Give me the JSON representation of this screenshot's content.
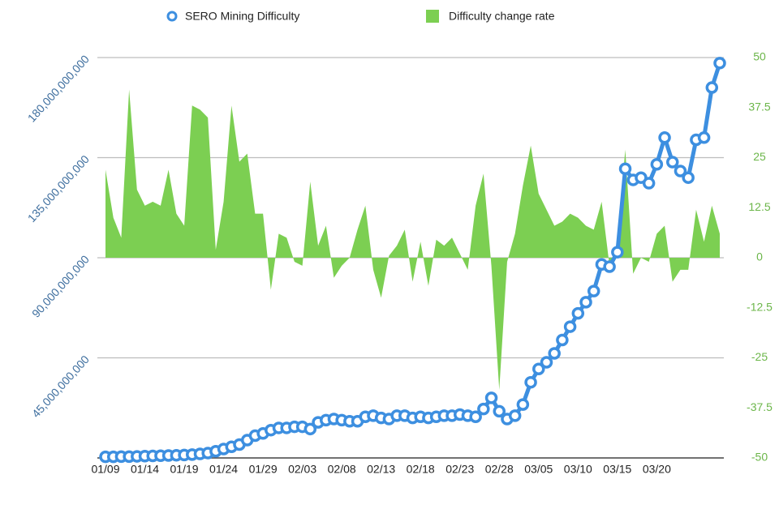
{
  "chart_data": {
    "type": "line+area",
    "categories": [
      "01/09",
      null,
      null,
      null,
      null,
      "01/14",
      null,
      null,
      null,
      null,
      "01/19",
      null,
      null,
      null,
      null,
      "01/24",
      null,
      null,
      null,
      null,
      "01/29",
      null,
      null,
      null,
      null,
      "02/03",
      null,
      null,
      null,
      null,
      "02/08",
      null,
      null,
      null,
      null,
      "02/13",
      null,
      null,
      null,
      null,
      "02/18",
      null,
      null,
      null,
      null,
      "02/23",
      null,
      null,
      null,
      null,
      "02/28",
      null,
      null,
      null,
      null,
      "03/05",
      null,
      null,
      null,
      null,
      "03/10",
      null,
      null,
      null,
      null,
      "03/15",
      null,
      null,
      null,
      null,
      "03/20",
      null,
      null,
      null,
      null,
      null,
      null,
      null,
      null
    ],
    "series": [
      {
        "name": "SERO Mining Difficulty",
        "color": "#3d8fe0",
        "type": "line",
        "axis": "y",
        "values": [
          500000000.0,
          500000000.0,
          600000000.0,
          600000000.0,
          700000000.0,
          800000000.0,
          900000000.0,
          1000000000.0,
          1100000000.0,
          1200000000.0,
          1300000000.0,
          1500000000.0,
          1800000000.0,
          2200000000.0,
          3000000000.0,
          4000000000.0,
          5000000000.0,
          6000000000.0,
          8000000000.0,
          10000000000.0,
          11000000000.0,
          12500000000.0,
          13500000000.0,
          13500000000.0,
          14000000000.0,
          14000000000.0,
          13000000000.0,
          16000000000.0,
          17000000000.0,
          17500000000.0,
          17000000000.0,
          16500000000.0,
          16500000000.0,
          18500000000.0,
          19000000000.0,
          18000000000.0,
          17500000000.0,
          19000000000.0,
          19000000000.0,
          18000000000.0,
          18500000000.0,
          18000000000.0,
          18500000000.0,
          19000000000.0,
          19000000000.0,
          19500000000.0,
          19000000000.0,
          18500000000.0,
          22000000000.0,
          27000000000.0,
          21000000000.0,
          17500000000.0,
          19000000000.0,
          24000000000.0,
          34000000000.0,
          40000000000.0,
          43000000000.0,
          47000000000.0,
          53000000000.0,
          59000000000.0,
          65000000000.0,
          70000000000.0,
          75000000000.0,
          87000000000.0,
          86000000000.0,
          92500000000.0,
          130000000000.0,
          125000000000.0,
          126000000000.0,
          123500000000.0,
          132000000000.0,
          144000000000.0,
          133000000000.0,
          129000000000.0,
          126000000000.0,
          143000000000.0,
          144000000000.0,
          166500000000.0,
          177500000000.0
        ]
      },
      {
        "name": "Difficulty change rate",
        "color": "#7ccf52",
        "type": "area",
        "axis": "y2",
        "values": [
          22,
          10,
          5,
          42,
          17,
          13,
          14,
          13,
          22,
          11,
          8,
          38,
          37,
          35,
          2,
          14,
          38,
          24,
          26,
          11,
          11,
          -8,
          6,
          5,
          -1,
          -2,
          19,
          3,
          8,
          -5,
          -2,
          0,
          7,
          13,
          -3,
          -10,
          0.5,
          3,
          7,
          -6,
          4,
          -7,
          4.5,
          3,
          5,
          1,
          -3,
          13,
          21,
          -2,
          -33,
          -1,
          6,
          18,
          28,
          16,
          12,
          8,
          9,
          11,
          10,
          8,
          7,
          14,
          -2,
          4,
          27,
          -4,
          0,
          -1,
          6,
          8,
          -6,
          -3,
          -3,
          12,
          4,
          13,
          6
        ]
      }
    ],
    "ylim": [
      0,
      180000000000.0
    ],
    "yticks": [
      {
        "value": 45000000000.0,
        "label": "45,000,000,000"
      },
      {
        "value": 90000000000.0,
        "label": "90,000,000,000"
      },
      {
        "value": 135000000000.0,
        "label": "135,000,000,000"
      },
      {
        "value": 180000000000.0,
        "label": "180,000,000,000"
      }
    ],
    "y2lim": [
      -50,
      50
    ],
    "y2ticks": [
      -50,
      -37.5,
      -25,
      -12.5,
      0,
      12.5,
      25,
      37.5,
      50
    ],
    "grid": true,
    "legend": "top"
  }
}
